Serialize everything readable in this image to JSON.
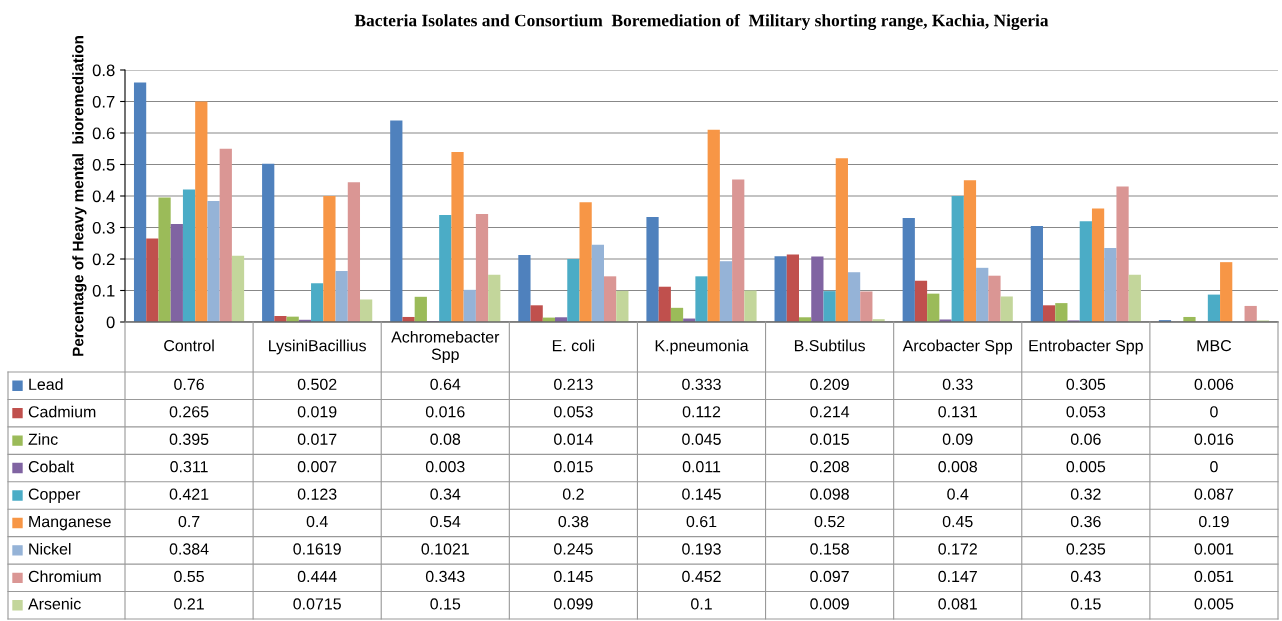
{
  "chart_data": {
    "type": "bar",
    "title": "Bacteria Isolates and Consortium  Boremediation of  Military shorting range, Kachia, Nigeria",
    "ylabel": "Percentage of Heavy mental  bioremediation",
    "categories": [
      "Control",
      "LysiniBacillius",
      "Achromebacter Spp",
      "E. coli",
      "K.pneumonia",
      "B.Subtilus",
      "Arcobacter Spp",
      "Entrobacter Spp",
      "MBC"
    ],
    "series": [
      {
        "name": "Lead",
        "color": "#4f81bd",
        "values": [
          0.76,
          0.502,
          0.64,
          0.213,
          0.333,
          0.209,
          0.33,
          0.305,
          0.006
        ]
      },
      {
        "name": "Cadmium",
        "color": "#c0504d",
        "values": [
          0.265,
          0.019,
          0.016,
          0.053,
          0.112,
          0.214,
          0.131,
          0.053,
          0
        ]
      },
      {
        "name": "Zinc",
        "color": "#9bbb59",
        "values": [
          0.395,
          0.017,
          0.08,
          0.014,
          0.045,
          0.015,
          0.09,
          0.06,
          0.016
        ]
      },
      {
        "name": "Cobalt",
        "color": "#8064a2",
        "values": [
          0.311,
          0.007,
          0.003,
          0.015,
          0.011,
          0.208,
          0.008,
          0.005,
          0
        ]
      },
      {
        "name": "Copper",
        "color": "#4bacc6",
        "values": [
          0.421,
          0.123,
          0.34,
          0.2,
          0.145,
          0.098,
          0.4,
          0.32,
          0.087
        ]
      },
      {
        "name": "Manganese",
        "color": "#f79646",
        "values": [
          0.7,
          0.4,
          0.54,
          0.38,
          0.61,
          0.52,
          0.45,
          0.36,
          0.19
        ]
      },
      {
        "name": "Nickel",
        "color": "#95b3d7",
        "values": [
          0.384,
          0.1619,
          0.1021,
          0.245,
          0.193,
          0.158,
          0.172,
          0.235,
          0.001
        ]
      },
      {
        "name": "Chromium",
        "color": "#da9694",
        "values": [
          0.55,
          0.444,
          0.343,
          0.145,
          0.452,
          0.097,
          0.147,
          0.43,
          0.051
        ]
      },
      {
        "name": "Arsenic",
        "color": "#c3d69b",
        "values": [
          0.21,
          0.0715,
          0.15,
          0.099,
          0.1,
          0.009,
          0.081,
          0.15,
          0.005
        ]
      }
    ],
    "ylim": [
      0,
      0.8
    ],
    "yticks": [
      0,
      0.1,
      0.2,
      0.3,
      0.4,
      0.5,
      0.6,
      0.7,
      0.8
    ],
    "grid": "y",
    "data_labels": true,
    "legend": "bottom left"
  }
}
